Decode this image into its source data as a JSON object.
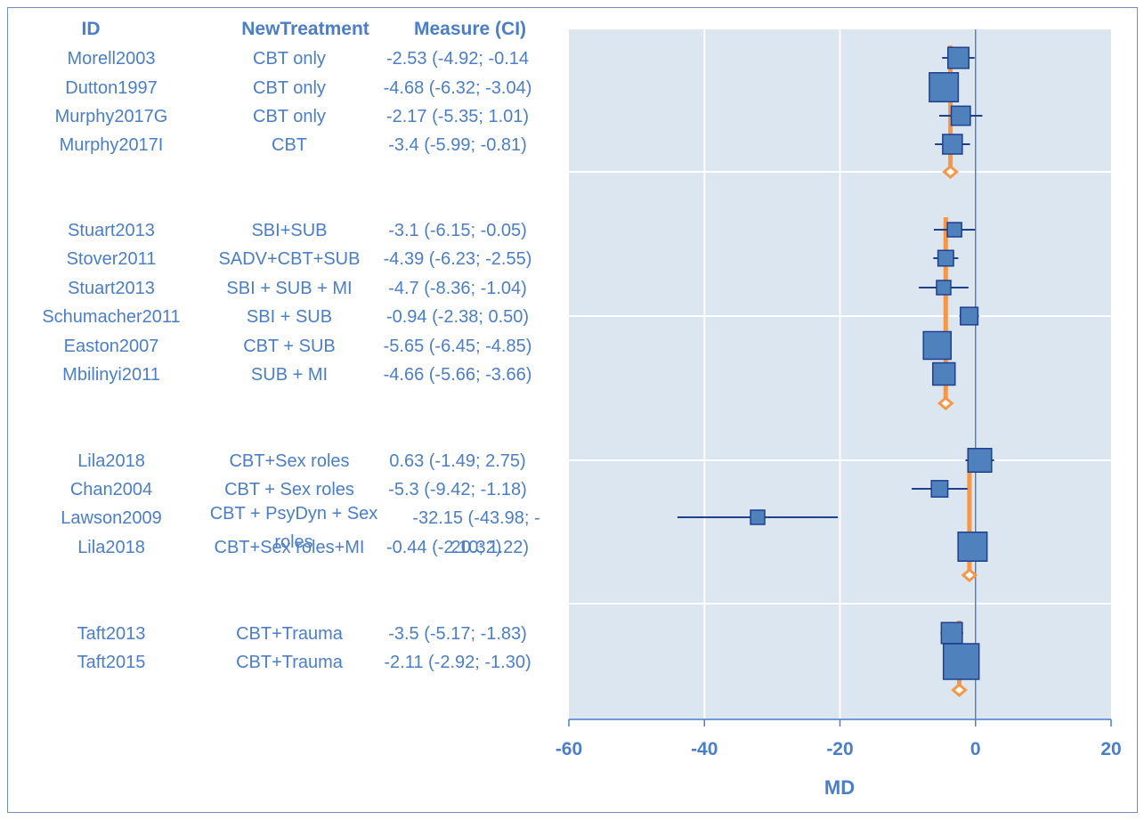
{
  "colors": {
    "text": "#4a7ec8",
    "plot_bg": "#dce6f1",
    "square_fill": "#4f81bd",
    "square_stroke": "#1f3f8f",
    "ci_line": "#1f3f8f",
    "pooled": "#f79646",
    "axis": "#4a7ec8",
    "grid": "#ffffff"
  },
  "chart_data": {
    "type": "forest",
    "column_headers": {
      "id": "ID",
      "treatment": "NewTreatment",
      "measure": "Measure (CI)"
    },
    "xlabel": "MD",
    "xlim": [
      -60,
      20
    ],
    "xticks": [
      "-60",
      "-40",
      "-20",
      "0",
      "20"
    ],
    "xtick_values": [
      -60,
      -40,
      -20,
      0,
      20
    ],
    "reference_line": 0,
    "groups": [
      {
        "pooled_estimate": -3.7,
        "studies": [
          {
            "id": "Morell2003",
            "treatment": "CBT only",
            "measure": "-2.53 (-4.92; -0.14",
            "md": -2.53,
            "lo": -4.92,
            "hi": -0.14,
            "weight": 0.45
          },
          {
            "id": "Dutton1997",
            "treatment": "CBT only",
            "measure": "-4.68 (-6.32; -3.04)",
            "md": -4.68,
            "lo": -6.32,
            "hi": -3.04,
            "weight": 0.75
          },
          {
            "id": "Murphy2017G",
            "treatment": "CBT only",
            "measure": "-2.17 (-5.35; 1.01)",
            "md": -2.17,
            "lo": -5.35,
            "hi": 1.01,
            "weight": 0.38
          },
          {
            "id": "Murphy2017I",
            "treatment": "CBT",
            "measure": "-3.4 (-5.99; -0.81)",
            "md": -3.4,
            "lo": -5.99,
            "hi": -0.81,
            "weight": 0.4
          }
        ]
      },
      {
        "pooled_estimate": -4.4,
        "studies": [
          {
            "id": "Stuart2013",
            "treatment": "SBI+SUB",
            "measure": "-3.1 (-6.15; -0.05)",
            "md": -3.1,
            "lo": -6.15,
            "hi": -0.05,
            "weight": 0.2
          },
          {
            "id": "Stover2011",
            "treatment": "SADV+CBT+SUB",
            "measure": "-4.39 (-6.23; -2.55)",
            "md": -4.39,
            "lo": -6.23,
            "hi": -2.55,
            "weight": 0.25
          },
          {
            "id": "Stuart2013",
            "treatment": "SBI + SUB + MI",
            "measure": "-4.7 (-8.36; -1.04)",
            "md": -4.7,
            "lo": -8.36,
            "hi": -1.04,
            "weight": 0.2
          },
          {
            "id": "Schumacher2011",
            "treatment": "SBI + SUB",
            "measure": "-0.94 (-2.38; 0.50)",
            "md": -0.94,
            "lo": -2.38,
            "hi": 0.5,
            "weight": 0.32
          },
          {
            "id": "Easton2007",
            "treatment": "CBT + SUB",
            "measure": "-5.65 (-6.45; -4.85)",
            "md": -5.65,
            "lo": -6.45,
            "hi": -4.85,
            "weight": 0.7
          },
          {
            "id": "Mbilinyi2011",
            "treatment": "SUB + MI",
            "measure": "-4.66 (-5.66; -3.66)",
            "md": -4.66,
            "lo": -5.66,
            "hi": -3.66,
            "weight": 0.5
          }
        ]
      },
      {
        "pooled_estimate": -0.9,
        "studies": [
          {
            "id": "Lila2018",
            "treatment": "CBT+Sex roles",
            "measure": "0.63 (-1.49; 2.75)",
            "md": 0.63,
            "lo": -1.49,
            "hi": 2.75,
            "weight": 0.55
          },
          {
            "id": "Chan2004",
            "treatment": "CBT + Sex roles",
            "measure": "-5.3 (-9.42; -1.18)",
            "md": -5.3,
            "lo": -9.42,
            "hi": -1.18,
            "weight": 0.28
          },
          {
            "id": "Lawson2009",
            "treatment": "CBT + PsyDyn + Sex roles",
            "measure": "-32.15 (-43.98; -20.32)",
            "md": -32.15,
            "lo": -43.98,
            "hi": -20.32,
            "weight": 0.2
          },
          {
            "id": "Lila2018",
            "treatment": "CBT+Sex roles+MI",
            "measure": "-0.44 (-2.10; 1.22)",
            "md": -0.44,
            "lo": -2.1,
            "hi": 1.22,
            "weight": 0.75
          }
        ]
      },
      {
        "pooled_estimate": -2.4,
        "studies": [
          {
            "id": "Taft2013",
            "treatment": "CBT+Trauma",
            "measure": "-3.5 (-5.17; -1.83)",
            "md": -3.5,
            "lo": -5.17,
            "hi": -1.83,
            "weight": 0.45
          },
          {
            "id": "Taft2015",
            "treatment": "CBT+Trauma",
            "measure": "-2.11 (-2.92; -1.30)",
            "md": -2.11,
            "lo": -2.92,
            "hi": -1.3,
            "weight": 1.0
          }
        ]
      }
    ]
  }
}
